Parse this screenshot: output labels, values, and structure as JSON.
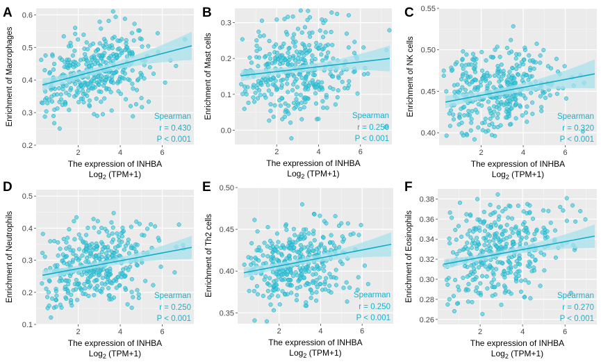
{
  "figure": {
    "xlabel_line1": "The expression of INHBA",
    "xlabel_log": "Log",
    "xlabel_sub": "2",
    "xlabel_rest": " (TPM+1)"
  },
  "colors": {
    "point_fill": "#3cc6dc",
    "point_stroke": "#1aa8c0",
    "fit_line": "#12a9c4",
    "ci_band": "#a8e2ec",
    "stat_text": "#17b0c9",
    "panel_bg": "#ebebeb",
    "grid_major": "#ffffff"
  },
  "chart_data": [
    {
      "panel": "A",
      "type": "scatter",
      "ylabel": "Enrichment of Macrophages",
      "xlabel": "The expression of INHBA Log2 (TPM+1)",
      "xlim": [
        0,
        7.5
      ],
      "xticks": [
        2,
        4,
        6
      ],
      "ylim": [
        0.2,
        0.62
      ],
      "yticks": [
        0.2,
        0.3,
        0.4,
        0.5,
        0.6
      ],
      "ytick_labels": [
        "0.2",
        "0.3",
        "0.4",
        "0.5",
        "0.6"
      ],
      "fit": {
        "x0": 0.3,
        "y0": 0.385,
        "x1": 7.4,
        "y1": 0.505,
        "ci": 0.03
      },
      "noise_sd": 0.06,
      "seed": 11,
      "stats": {
        "method": "Spearman",
        "r": "r = 0.430",
        "p": "P < 0.001"
      }
    },
    {
      "panel": "B",
      "type": "scatter",
      "ylabel": "Enrichment of Mast cells",
      "xlabel": "The expression of INHBA Log2 (TPM+1)",
      "xlim": [
        0,
        7.5
      ],
      "xticks": [
        2,
        4,
        6
      ],
      "ylim": [
        -0.04,
        0.34
      ],
      "yticks": [
        0.0,
        0.1,
        0.2,
        0.3
      ],
      "ytick_labels": [
        "0.0",
        "0.1",
        "0.2",
        "0.3"
      ],
      "fit": {
        "x0": 0.3,
        "y0": 0.152,
        "x1": 7.4,
        "y1": 0.2,
        "ci": 0.025
      },
      "noise_sd": 0.065,
      "seed": 23,
      "stats": {
        "method": "Spearman",
        "r": "r = 0.250",
        "p": "P < 0.001"
      }
    },
    {
      "panel": "C",
      "type": "scatter",
      "ylabel": "Enrichment of NK cells",
      "xlabel": "The expression of INHBA Log2 (TPM+1)",
      "xlim": [
        0,
        7.5
      ],
      "xticks": [
        2,
        4,
        6
      ],
      "ylim": [
        0.385,
        0.55
      ],
      "yticks": [
        0.4,
        0.45,
        0.5,
        0.55
      ],
      "ytick_labels": [
        "0.40",
        "0.45",
        "0.50",
        "0.55"
      ],
      "fit": {
        "x0": 0.3,
        "y0": 0.437,
        "x1": 7.4,
        "y1": 0.471,
        "ci": 0.012
      },
      "noise_sd": 0.025,
      "seed": 37,
      "stats": {
        "method": "Spearman",
        "r": "r = 0.320",
        "p": "P < 0.001"
      }
    },
    {
      "panel": "D",
      "type": "scatter",
      "ylabel": "Enrichment of Neutrophils",
      "xlabel": "The expression of INHBA Log2 (TPM+1)",
      "xlim": [
        0,
        7.5
      ],
      "xticks": [
        2,
        4,
        6
      ],
      "ylim": [
        0.1,
        0.52
      ],
      "yticks": [
        0.1,
        0.2,
        0.3,
        0.4,
        0.5
      ],
      "ytick_labels": [
        "0.1",
        "0.2",
        "0.3",
        "0.4",
        "0.5"
      ],
      "fit": {
        "x0": 0.3,
        "y0": 0.253,
        "x1": 7.4,
        "y1": 0.34,
        "ci": 0.025
      },
      "noise_sd": 0.06,
      "seed": 41,
      "stats": {
        "method": "Spearman",
        "r": "r = 0.250",
        "p": "P < 0.001"
      }
    },
    {
      "panel": "E",
      "type": "scatter",
      "ylabel": "Enrichment of Th2 cells",
      "xlabel": "The expression of INHBA Log2 (TPM+1)",
      "xlim": [
        0,
        7.5
      ],
      "xticks": [
        2,
        4,
        6
      ],
      "ylim": [
        0.337,
        0.5
      ],
      "yticks": [
        0.35,
        0.4,
        0.45,
        0.5
      ],
      "ytick_labels": [
        "0.35",
        "0.40",
        "0.45",
        "0.50"
      ],
      "fit": {
        "x0": 0.3,
        "y0": 0.398,
        "x1": 7.4,
        "y1": 0.432,
        "ci": 0.01
      },
      "noise_sd": 0.025,
      "seed": 53,
      "stats": {
        "method": "Spearman",
        "r": "r = 0.250",
        "p": "P < 0.001"
      }
    },
    {
      "panel": "F",
      "type": "scatter",
      "ylabel": "Enrichment of Eosinophils",
      "xlabel": "The expression of INHBA Log2 (TPM+1)",
      "xlim": [
        0,
        7.5
      ],
      "xticks": [
        2,
        4,
        6
      ],
      "ylim": [
        0.255,
        0.39
      ],
      "yticks": [
        0.26,
        0.28,
        0.3,
        0.32,
        0.34,
        0.36,
        0.38
      ],
      "ytick_labels": [
        "0.26",
        "0.28",
        "0.30",
        "0.32",
        "0.34",
        "0.36",
        "0.38"
      ],
      "fit": {
        "x0": 0.3,
        "y0": 0.315,
        "x1": 7.4,
        "y1": 0.343,
        "ci": 0.008
      },
      "noise_sd": 0.022,
      "seed": 67,
      "stats": {
        "method": "Spearman",
        "r": "r = 0.270",
        "p": "P < 0.001"
      }
    }
  ]
}
